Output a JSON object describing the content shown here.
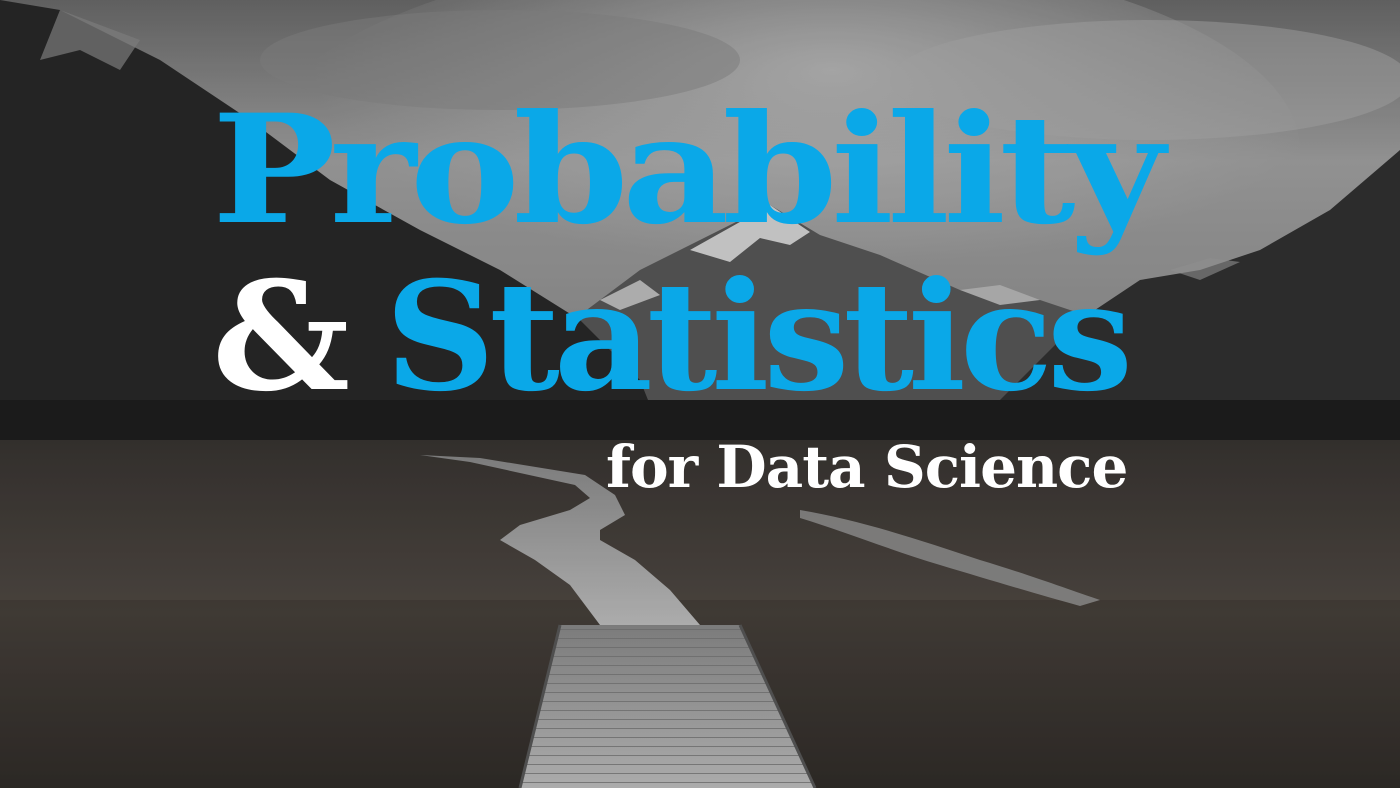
{
  "title": {
    "line1": "Probability",
    "ampersand": "&",
    "line2": "Statistics",
    "subtitle": "for Data Science"
  },
  "colors": {
    "accent_blue": "#0aa8e8",
    "white": "#ffffff",
    "sky": "#9a9a9a",
    "mountains": "#2b2b2b",
    "grass": "#4a4540",
    "boardwalk": "#b9b9b9"
  }
}
